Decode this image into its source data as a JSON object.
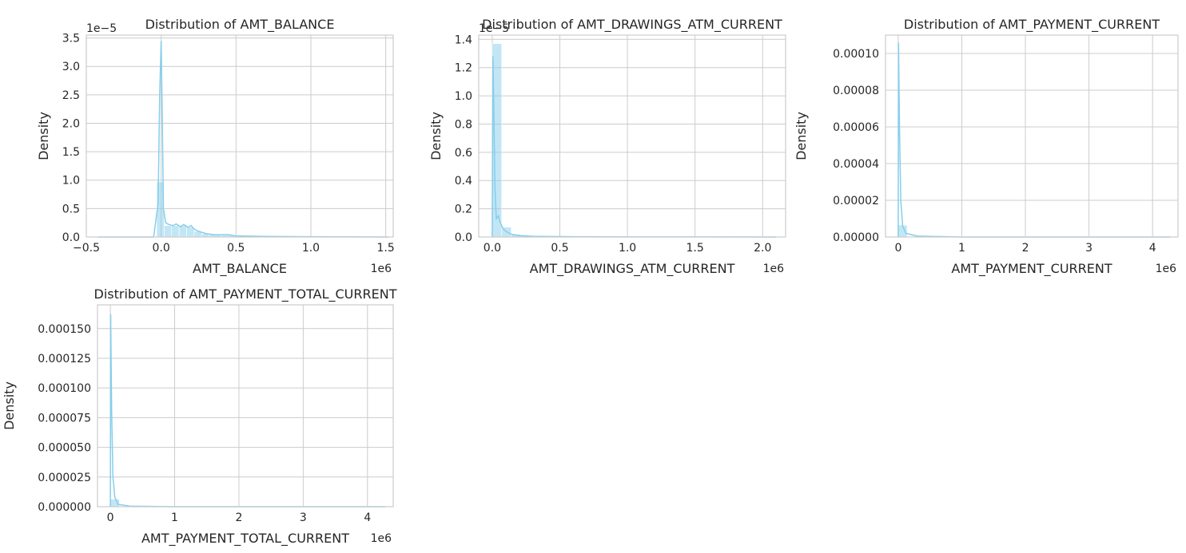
{
  "chart_data": [
    {
      "type": "histogram",
      "title": "Distribution of AMT_BALANCE",
      "xlabel": "AMT_BALANCE",
      "ylabel": "Density",
      "x_offset_text": "1e6",
      "y_offset_text": "1e−5",
      "xlim": [
        -0.5,
        1.55
      ],
      "ylim": [
        0,
        3.55
      ],
      "xticks": [
        -0.5,
        0.0,
        0.5,
        1.0,
        1.5
      ],
      "xticklabels": [
        "−0.5",
        "0.0",
        "0.5",
        "1.0",
        "1.5"
      ],
      "yticks": [
        0.0,
        0.5,
        1.0,
        1.5,
        2.0,
        2.5,
        3.0,
        3.5
      ],
      "yticklabels": [
        "0.0",
        "0.5",
        "1.0",
        "1.5",
        "2.0",
        "2.5",
        "3.0",
        "3.5"
      ],
      "grid": true,
      "color": "#87ceeb",
      "bins": [
        {
          "x0": -0.42,
          "x1": -0.03,
          "y": 0.01
        },
        {
          "x0": -0.03,
          "x1": 0.02,
          "y": 0.97
        },
        {
          "x0": 0.02,
          "x1": 0.07,
          "y": 0.2
        },
        {
          "x0": 0.07,
          "x1": 0.12,
          "y": 0.2
        },
        {
          "x0": 0.12,
          "x1": 0.17,
          "y": 0.2
        },
        {
          "x0": 0.17,
          "x1": 0.22,
          "y": 0.17
        },
        {
          "x0": 0.22,
          "x1": 0.27,
          "y": 0.1
        },
        {
          "x0": 0.27,
          "x1": 0.32,
          "y": 0.06
        },
        {
          "x0": 0.32,
          "x1": 0.4,
          "y": 0.04
        },
        {
          "x0": 0.4,
          "x1": 0.5,
          "y": 0.03
        },
        {
          "x0": 0.5,
          "x1": 1.52,
          "y": 0.01
        }
      ],
      "kde": [
        [
          -0.42,
          0.0
        ],
        [
          -0.05,
          0.0
        ],
        [
          -0.02,
          0.6
        ],
        [
          -0.01,
          2.5
        ],
        [
          0.0,
          3.45
        ],
        [
          0.008,
          2.0
        ],
        [
          0.015,
          0.5
        ],
        [
          0.03,
          0.25
        ],
        [
          0.05,
          0.22
        ],
        [
          0.08,
          0.2
        ],
        [
          0.1,
          0.23
        ],
        [
          0.13,
          0.18
        ],
        [
          0.15,
          0.22
        ],
        [
          0.18,
          0.17
        ],
        [
          0.2,
          0.2
        ],
        [
          0.22,
          0.14
        ],
        [
          0.25,
          0.1
        ],
        [
          0.3,
          0.06
        ],
        [
          0.35,
          0.04
        ],
        [
          0.45,
          0.04
        ],
        [
          0.5,
          0.02
        ],
        [
          0.7,
          0.01
        ],
        [
          1.0,
          0.005
        ],
        [
          1.52,
          0.0
        ]
      ]
    },
    {
      "type": "histogram",
      "title": "Distribution of AMT_DRAWINGS_ATM_CURRENT",
      "xlabel": "AMT_DRAWINGS_ATM_CURRENT",
      "ylabel": "Density",
      "x_offset_text": "1e6",
      "y_offset_text": "1e−5",
      "xlim": [
        -0.1,
        2.17
      ],
      "ylim": [
        0,
        1.43
      ],
      "xticks": [
        0.0,
        0.5,
        1.0,
        1.5,
        2.0
      ],
      "xticklabels": [
        "0.0",
        "0.5",
        "1.0",
        "1.5",
        "2.0"
      ],
      "yticks": [
        0.0,
        0.2,
        0.4,
        0.6,
        0.8,
        1.0,
        1.2,
        1.4
      ],
      "yticklabels": [
        "0.0",
        "0.2",
        "0.4",
        "0.6",
        "0.8",
        "1.0",
        "1.2",
        "1.4"
      ],
      "grid": true,
      "color": "#87ceeb",
      "bins": [
        {
          "x0": 0.0,
          "x1": 0.07,
          "y": 1.37
        },
        {
          "x0": 0.07,
          "x1": 0.14,
          "y": 0.07
        },
        {
          "x0": 0.14,
          "x1": 0.21,
          "y": 0.02
        },
        {
          "x0": 0.21,
          "x1": 0.28,
          "y": 0.01
        },
        {
          "x0": 0.28,
          "x1": 2.1,
          "y": 0.003
        }
      ],
      "kde": [
        [
          0.0,
          0.0
        ],
        [
          0.005,
          1.28
        ],
        [
          0.012,
          0.9
        ],
        [
          0.02,
          0.35
        ],
        [
          0.03,
          0.13
        ],
        [
          0.045,
          0.15
        ],
        [
          0.06,
          0.1
        ],
        [
          0.08,
          0.06
        ],
        [
          0.1,
          0.04
        ],
        [
          0.14,
          0.02
        ],
        [
          0.2,
          0.01
        ],
        [
          0.3,
          0.005
        ],
        [
          0.6,
          0.002
        ],
        [
          1.0,
          0.001
        ],
        [
          2.1,
          0.0
        ]
      ]
    },
    {
      "type": "histogram",
      "title": "Distribution of AMT_PAYMENT_CURRENT",
      "xlabel": "AMT_PAYMENT_CURRENT",
      "ylabel": "Density",
      "x_offset_text": "1e6",
      "y_offset_text": "",
      "xlim": [
        -0.2,
        4.4
      ],
      "ylim": [
        0,
        0.00011
      ],
      "xticks": [
        0,
        1,
        2,
        3,
        4
      ],
      "xticklabels": [
        "0",
        "1",
        "2",
        "3",
        "4"
      ],
      "yticks": [
        0.0,
        2e-05,
        4e-05,
        6e-05,
        8e-05,
        0.0001
      ],
      "yticklabels": [
        "0.00000",
        "0.00002",
        "0.00004",
        "0.00006",
        "0.00008",
        "0.00010"
      ],
      "grid": true,
      "color": "#87ceeb",
      "bins": [
        {
          "x0": 0.0,
          "x1": 0.14,
          "y": 6.5e-06
        },
        {
          "x0": 0.14,
          "x1": 4.28,
          "y": 3e-07
        }
      ],
      "kde": [
        [
          0.0,
          0.0
        ],
        [
          0.005,
          0.000106
        ],
        [
          0.02,
          6e-05
        ],
        [
          0.04,
          2e-05
        ],
        [
          0.07,
          6e-06
        ],
        [
          0.12,
          2e-06
        ],
        [
          0.3,
          5e-07
        ],
        [
          1.0,
          0.0
        ],
        [
          4.28,
          0.0
        ]
      ]
    },
    {
      "type": "histogram",
      "title": "Distribution of AMT_PAYMENT_TOTAL_CURRENT",
      "xlabel": "AMT_PAYMENT_TOTAL_CURRENT",
      "ylabel": "Density",
      "x_offset_text": "1e6",
      "y_offset_text": "",
      "xlim": [
        -0.2,
        4.4
      ],
      "ylim": [
        0,
        0.00017
      ],
      "xticks": [
        0,
        1,
        2,
        3,
        4
      ],
      "xticklabels": [
        "0",
        "1",
        "2",
        "3",
        "4"
      ],
      "yticks": [
        0.0,
        2.5e-05,
        5e-05,
        7.5e-05,
        0.0001,
        0.000125,
        0.00015
      ],
      "yticklabels": [
        "0.000000",
        "0.000025",
        "0.000050",
        "0.000075",
        "0.000100",
        "0.000125",
        "0.000150"
      ],
      "grid": true,
      "color": "#87ceeb",
      "bins": [
        {
          "x0": 0.0,
          "x1": 0.14,
          "y": 6.5e-06
        },
        {
          "x0": 0.14,
          "x1": 4.28,
          "y": 3e-07
        }
      ],
      "kde": [
        [
          0.0,
          0.0
        ],
        [
          0.005,
          0.000162
        ],
        [
          0.02,
          8e-05
        ],
        [
          0.04,
          2.5e-05
        ],
        [
          0.07,
          8e-06
        ],
        [
          0.12,
          2e-06
        ],
        [
          0.3,
          5e-07
        ],
        [
          1.0,
          0.0
        ],
        [
          4.28,
          0.0
        ]
      ]
    }
  ]
}
